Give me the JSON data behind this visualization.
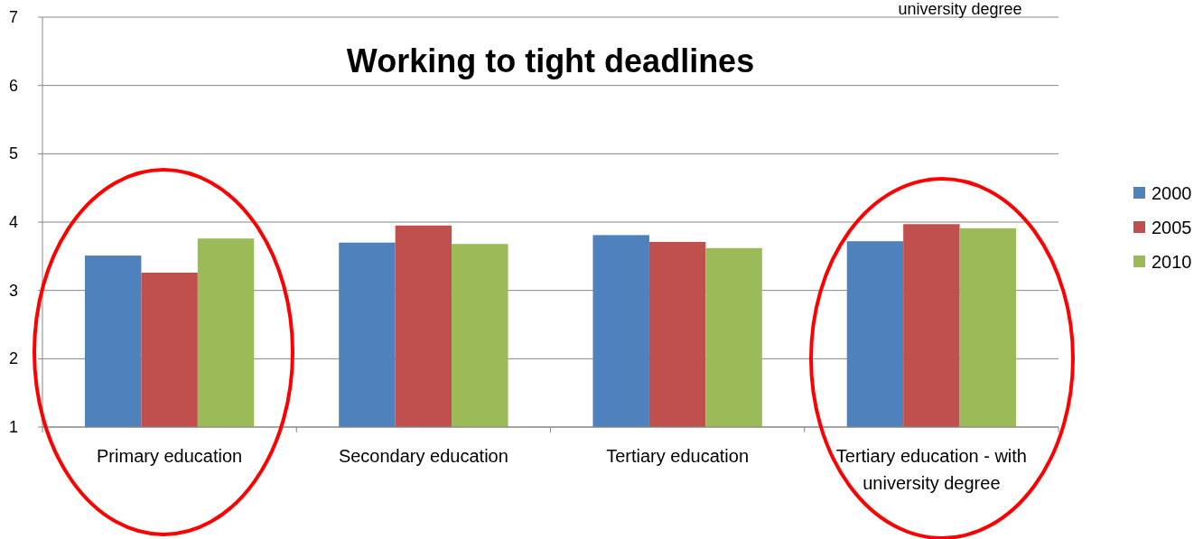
{
  "chart_data": {
    "type": "bar",
    "title": "Working to tight deadlines",
    "categories": [
      "Primary education",
      "Secondary education",
      "Tertiary education",
      "Tertiary education - with university degree"
    ],
    "series": [
      {
        "name": "2000",
        "color": "#4f81bd",
        "values": [
          3.51,
          3.7,
          3.81,
          3.72
        ]
      },
      {
        "name": "2005",
        "color": "#c0504d",
        "values": [
          3.26,
          3.95,
          3.71,
          3.97
        ]
      },
      {
        "name": "2010",
        "color": "#9bbb59",
        "values": [
          3.76,
          3.68,
          3.62,
          3.91
        ]
      }
    ],
    "ylim": [
      1,
      7
    ],
    "yticks": [
      1,
      2,
      3,
      4,
      5,
      6,
      7
    ],
    "grid": "y",
    "legend": "right",
    "annotations": [
      "university degree"
    ]
  }
}
